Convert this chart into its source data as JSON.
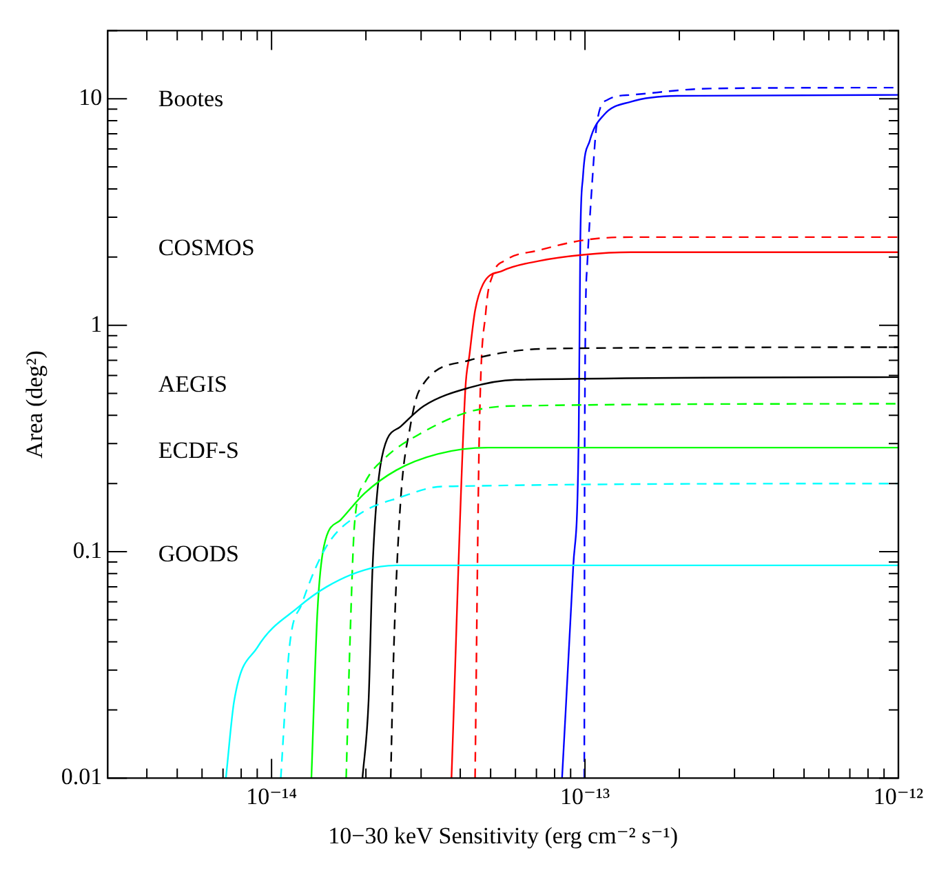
{
  "chart_data": {
    "type": "line",
    "xlabel": "10−30 keV Sensitivity (erg cm⁻² s⁻¹)",
    "ylabel": "Area (deg²)",
    "log": "xy",
    "grid": false,
    "legend": false,
    "xlim": [
      3e-15,
      1e-12
    ],
    "ylim": [
      0.01,
      20
    ],
    "xticks": [
      {
        "value": 4e-15,
        "label": null
      },
      {
        "value": 5e-15,
        "label": null
      },
      {
        "value": 6e-15,
        "label": null
      },
      {
        "value": 7e-15,
        "label": null
      },
      {
        "value": 8e-15,
        "label": null
      },
      {
        "value": 9e-15,
        "label": null
      },
      {
        "value": 1e-14,
        "label": "10⁻¹⁴"
      },
      {
        "value": 2e-14,
        "label": null
      },
      {
        "value": 3e-14,
        "label": null
      },
      {
        "value": 4e-14,
        "label": null
      },
      {
        "value": 5e-14,
        "label": null
      },
      {
        "value": 6e-14,
        "label": null
      },
      {
        "value": 7e-14,
        "label": null
      },
      {
        "value": 8e-14,
        "label": null
      },
      {
        "value": 9e-14,
        "label": null
      },
      {
        "value": 1e-13,
        "label": "10⁻¹³"
      },
      {
        "value": 2e-13,
        "label": null
      },
      {
        "value": 3e-13,
        "label": null
      },
      {
        "value": 4e-13,
        "label": null
      },
      {
        "value": 5e-13,
        "label": null
      },
      {
        "value": 6e-13,
        "label": null
      },
      {
        "value": 7e-13,
        "label": null
      },
      {
        "value": 8e-13,
        "label": null
      },
      {
        "value": 9e-13,
        "label": null
      },
      {
        "value": 1e-12,
        "label": "10⁻¹²"
      }
    ],
    "yticks": [
      0.01,
      {
        "value": 0.02,
        "label": null
      },
      {
        "value": 0.03,
        "label": null
      },
      {
        "value": 0.04,
        "label": null
      },
      {
        "value": 0.05,
        "label": null
      },
      {
        "value": 0.06,
        "label": null
      },
      {
        "value": 0.07,
        "label": null
      },
      {
        "value": 0.08,
        "label": null
      },
      {
        "value": 0.09,
        "label": null
      },
      0.1,
      {
        "value": 0.2,
        "label": null
      },
      {
        "value": 0.3,
        "label": null
      },
      {
        "value": 0.4,
        "label": null
      },
      {
        "value": 0.5,
        "label": null
      },
      {
        "value": 0.6,
        "label": null
      },
      {
        "value": 0.7,
        "label": null
      },
      {
        "value": 0.8,
        "label": null
      },
      {
        "value": 0.9,
        "label": null
      },
      1,
      {
        "value": 2,
        "label": null
      },
      {
        "value": 3,
        "label": null
      },
      {
        "value": 4,
        "label": null
      },
      {
        "value": 5,
        "label": null
      },
      {
        "value": 6,
        "label": null
      },
      {
        "value": 7,
        "label": null
      },
      {
        "value": 8,
        "label": null
      },
      {
        "value": 9,
        "label": null
      },
      10,
      {
        "value": 20,
        "label": null
      }
    ],
    "series": [
      {
        "color": "#00ffff",
        "line_style": "solid",
        "x": [
          7.15e-15,
          7.6e-15,
          9e-15,
          1.22e-14,
          1.5e-14,
          1.98e-14,
          2.5e-14,
          1e-12
        ],
        "values": [
          0.01,
          0.022,
          0.0377,
          0.057,
          0.07,
          0.083,
          0.087,
          0.087
        ]
      },
      {
        "color": "#00ffff",
        "line_style": "dashed",
        "x": [
          1.07e-14,
          1.14e-14,
          1.25e-14,
          1.5e-14,
          1.9e-14,
          2.58e-14,
          3.5e-14,
          1e-12
        ],
        "values": [
          0.01,
          0.0377,
          0.059,
          0.106,
          0.146,
          0.174,
          0.194,
          0.2
        ]
      },
      {
        "color": "#00ff00",
        "line_style": "solid",
        "x": [
          1.34e-14,
          1.4e-14,
          1.47e-14,
          1.66e-14,
          1.98e-14,
          2.5e-14,
          3.39e-14,
          4.9e-14,
          1e-12
        ],
        "values": [
          0.01,
          0.0536,
          0.106,
          0.138,
          0.181,
          0.229,
          0.27,
          0.288,
          0.288
        ]
      },
      {
        "color": "#00ff00",
        "line_style": "dashed",
        "x": [
          1.73e-14,
          1.78e-14,
          1.84e-14,
          1.98e-14,
          2.32e-14,
          2.96e-14,
          4.15e-14,
          5.8e-14,
          1e-12
        ],
        "values": [
          0.01,
          0.041,
          0.133,
          0.2,
          0.262,
          0.33,
          0.41,
          0.44,
          0.45
        ]
      },
      {
        "color": "#000000",
        "line_style": "solid",
        "x": [
          1.95e-14,
          2.04e-14,
          2.1e-14,
          2.25e-14,
          2.58e-14,
          3.06e-14,
          4.28e-14,
          6e-14,
          1e-12
        ],
        "values": [
          0.01,
          0.022,
          0.085,
          0.262,
          0.357,
          0.44,
          0.53,
          0.574,
          0.59
        ]
      },
      {
        "color": "#000000",
        "line_style": "dashed",
        "x": [
          2.4e-14,
          2.45e-14,
          2.58e-14,
          2.77e-14,
          2.96e-14,
          4.28e-14,
          6e-14,
          8.45e-14,
          1e-12
        ],
        "values": [
          0.01,
          0.034,
          0.167,
          0.357,
          0.515,
          0.7,
          0.77,
          0.79,
          0.8
        ]
      },
      {
        "color": "#ff0000",
        "line_style": "solid",
        "x": [
          3.75e-14,
          4.15e-14,
          4.28e-14,
          4.46e-14,
          4.73e-14,
          5.46e-14,
          7.1e-14,
          1e-13,
          1.4e-13,
          1e-12
        ],
        "values": [
          0.01,
          0.515,
          0.74,
          1.16,
          1.52,
          1.74,
          1.92,
          2.05,
          2.1,
          2.1
        ]
      },
      {
        "color": "#ff0000",
        "line_style": "dashed",
        "x": [
          4.46e-14,
          4.6e-14,
          4.83e-14,
          5.08e-14,
          5.6e-14,
          7.1e-14,
          1e-13,
          1.4e-13,
          1e-12
        ],
        "values": [
          0.01,
          0.33,
          1.16,
          1.67,
          1.94,
          2.14,
          2.38,
          2.45,
          2.45
        ]
      },
      {
        "color": "#0000ff",
        "line_style": "solid",
        "x": [
          8.45e-14,
          9.17e-14,
          9.55e-14,
          9.66e-14,
          9.85e-14,
          1.035e-13,
          1.15e-13,
          1.4e-13,
          1.97e-13,
          1e-12
        ],
        "values": [
          0.01,
          0.085,
          0.33,
          2.28,
          4.5,
          6.5,
          8.5,
          9.7,
          10.3,
          10.4
        ]
      },
      {
        "color": "#0000ff",
        "line_style": "dashed",
        "x": [
          9.95e-14,
          9.98e-14,
          1.016e-13,
          1.057e-13,
          1.09e-13,
          1.18e-13,
          1.4e-13,
          2.51e-13,
          1e-12
        ],
        "values": [
          0.01,
          0.33,
          1.82,
          4.5,
          7.7,
          9.9,
          10.4,
          11.1,
          11.2
        ]
      }
    ],
    "annotations": [
      "Bootes",
      "COSMOS",
      "AEGIS",
      "ECDF-S",
      "GOODS"
    ]
  }
}
